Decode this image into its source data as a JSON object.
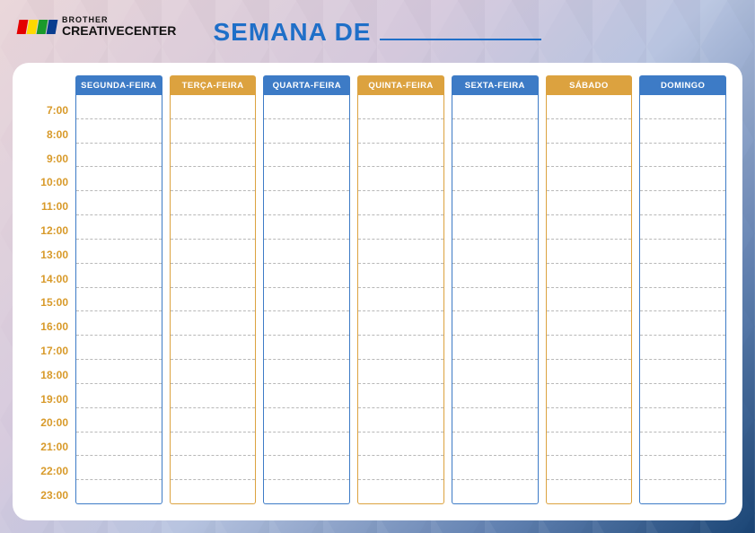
{
  "logo": {
    "brand": "BROTHER",
    "name": "CREATIVECENTER"
  },
  "logo_colors": [
    "#e40000",
    "#ffd800",
    "#1a9a2b",
    "#0a3d8f"
  ],
  "title": "SEMANA DE",
  "title_color": "#1f6fc8",
  "accent_blue": "#3d7bc6",
  "accent_yellow": "#dca23f",
  "time_color": "#d89a2a",
  "slot_count": 17,
  "row_height": 26.8,
  "days": [
    {
      "label": "SEGUNDA-FEIRA",
      "color": "blue"
    },
    {
      "label": "TERÇA-FEIRA",
      "color": "yellow"
    },
    {
      "label": "QUARTA-FEIRA",
      "color": "blue"
    },
    {
      "label": "QUINTA-FEIRA",
      "color": "yellow"
    },
    {
      "label": "SEXTA-FEIRA",
      "color": "blue"
    },
    {
      "label": "SÁBADO",
      "color": "yellow"
    },
    {
      "label": "DOMINGO",
      "color": "blue"
    }
  ],
  "times": [
    "7:00",
    "8:00",
    "9:00",
    "10:00",
    "11:00",
    "12:00",
    "13:00",
    "14:00",
    "15:00",
    "16:00",
    "17:00",
    "18:00",
    "19:00",
    "20:00",
    "21:00",
    "22:00",
    "23:00"
  ]
}
